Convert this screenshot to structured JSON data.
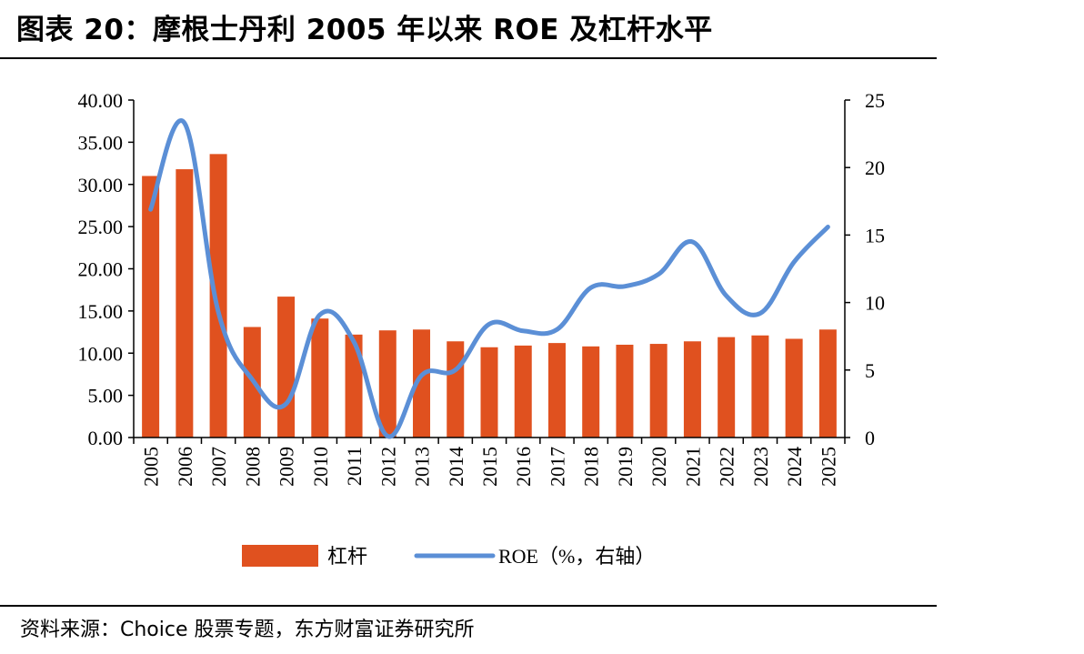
{
  "figure": {
    "title": "图表 20：摩根士丹利 2005 年以来 ROE 及杠杆水平",
    "source": "资料来源：Choice 股票专题，东方财富证券研究所"
  },
  "chart_data": {
    "type": "bar+line",
    "categories": [
      "2005",
      "2006",
      "2007",
      "2008",
      "2009",
      "2010",
      "2011",
      "2012",
      "2013",
      "2014",
      "2015",
      "2016",
      "2017",
      "2018",
      "2019",
      "2020",
      "2021",
      "2022",
      "2023",
      "2024",
      "2025"
    ],
    "series": [
      {
        "name": "杠杆",
        "type": "bar",
        "axis": "left",
        "color": "#e0511f",
        "values": [
          31.0,
          31.8,
          33.6,
          13.1,
          16.7,
          14.1,
          12.2,
          12.7,
          12.8,
          11.4,
          10.7,
          10.9,
          11.2,
          10.8,
          11.0,
          11.1,
          11.4,
          11.9,
          12.1,
          11.7,
          12.8
        ]
      },
      {
        "name": "ROE（%，右轴）",
        "type": "line",
        "axis": "right",
        "color": "#5b8fd6",
        "values": [
          16.9,
          23.3,
          9.3,
          4.3,
          2.5,
          9.1,
          7.1,
          0.1,
          4.6,
          5.0,
          8.4,
          7.9,
          8.0,
          11.1,
          11.2,
          12.1,
          14.5,
          10.5,
          9.2,
          13.0,
          15.6
        ]
      }
    ],
    "left_axis": {
      "ylim": [
        0,
        40
      ],
      "ticks": [
        "0.00",
        "5.00",
        "10.00",
        "15.00",
        "20.00",
        "25.00",
        "30.00",
        "35.00",
        "40.00"
      ]
    },
    "right_axis": {
      "ylim": [
        0,
        25
      ],
      "ticks": [
        "0",
        "5",
        "10",
        "15",
        "20",
        "25"
      ]
    },
    "legend": {
      "placement": "bottom",
      "items": [
        "杠杆",
        "ROE（%，右轴）"
      ]
    },
    "grid": false
  }
}
